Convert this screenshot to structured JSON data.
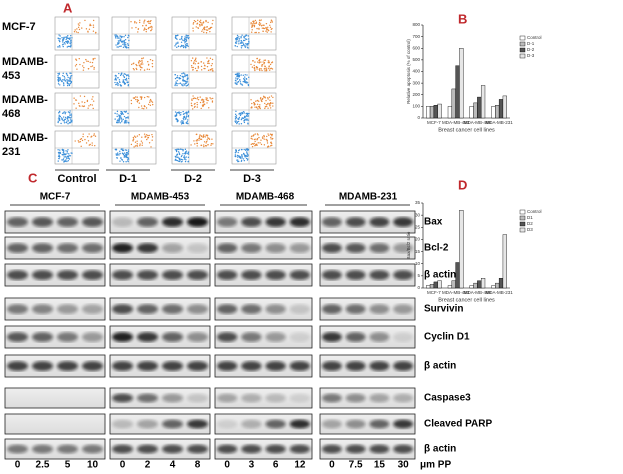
{
  "panel_labels": [
    "A",
    "B",
    "C",
    "D"
  ],
  "flow": {
    "rows": [
      "MCF-7",
      "MDAMB-453",
      "MDAMB-468",
      "MDAMB-231"
    ],
    "columns": [
      "Control",
      "D-1",
      "D-2",
      "D-3"
    ]
  },
  "blots": {
    "cell_lines": [
      "MCF-7",
      "MDAMB-453",
      "MDAMB-468",
      "MDAMB-231"
    ],
    "groups": [
      [
        "Bax",
        "Bcl-2",
        "β actin"
      ],
      [
        "Survivin",
        "Cyclin D1",
        "β actin"
      ],
      [
        "Caspase3",
        "Cleaved PARP",
        "β actin"
      ]
    ],
    "doses": [
      [
        0,
        2.5,
        5,
        10
      ],
      [
        0,
        2,
        4,
        8
      ],
      [
        0,
        3,
        6,
        12
      ],
      [
        0,
        7.5,
        15,
        30
      ]
    ],
    "dose_unit": "μm PP"
  },
  "chart_data": [
    {
      "type": "bar",
      "y_label": "Relative apoptosis (% of control)",
      "x_label": "Breast cancer cell lines",
      "categories": [
        "MCF-7",
        "MDA-MB-453",
        "MDA-MB-468",
        "MDA-MB-231"
      ],
      "series": [
        {
          "name": "Control",
          "color": "#ffffff",
          "values": [
            100,
            100,
            100,
            100
          ]
        },
        {
          "name": "D-1",
          "color": "#bbbbbb",
          "values": [
            100,
            250,
            130,
            110
          ]
        },
        {
          "name": "D-2",
          "color": "#555555",
          "values": [
            110,
            450,
            180,
            160
          ]
        },
        {
          "name": "D-3",
          "color": "#e6e6e6",
          "values": [
            120,
            600,
            280,
            190
          ]
        }
      ],
      "ylim": [
        0,
        800
      ],
      "yticks": [
        0,
        100,
        200,
        300,
        400,
        500,
        600,
        700,
        800
      ]
    },
    {
      "type": "bar",
      "y_label": "Bax/Bcl2 ratio",
      "x_label": "Breast cancer cell lines",
      "categories": [
        "MCF-7",
        "MDA-MB-453",
        "MDA-MB-468",
        "MDA-MB-231"
      ],
      "series": [
        {
          "name": "Control",
          "color": "#ffffff",
          "values": [
            1,
            1,
            1,
            1
          ]
        },
        {
          "name": "D1",
          "color": "#bbbbbb",
          "values": [
            1.5,
            3,
            2,
            2
          ]
        },
        {
          "name": "D2",
          "color": "#555555",
          "values": [
            2.5,
            10.5,
            3,
            4
          ]
        },
        {
          "name": "D3",
          "color": "#e6e6e6",
          "values": [
            3,
            32,
            4,
            22
          ]
        }
      ],
      "ylim": [
        0,
        35
      ],
      "yticks": [
        0,
        5,
        10,
        15,
        20,
        25,
        30,
        35
      ]
    }
  ]
}
